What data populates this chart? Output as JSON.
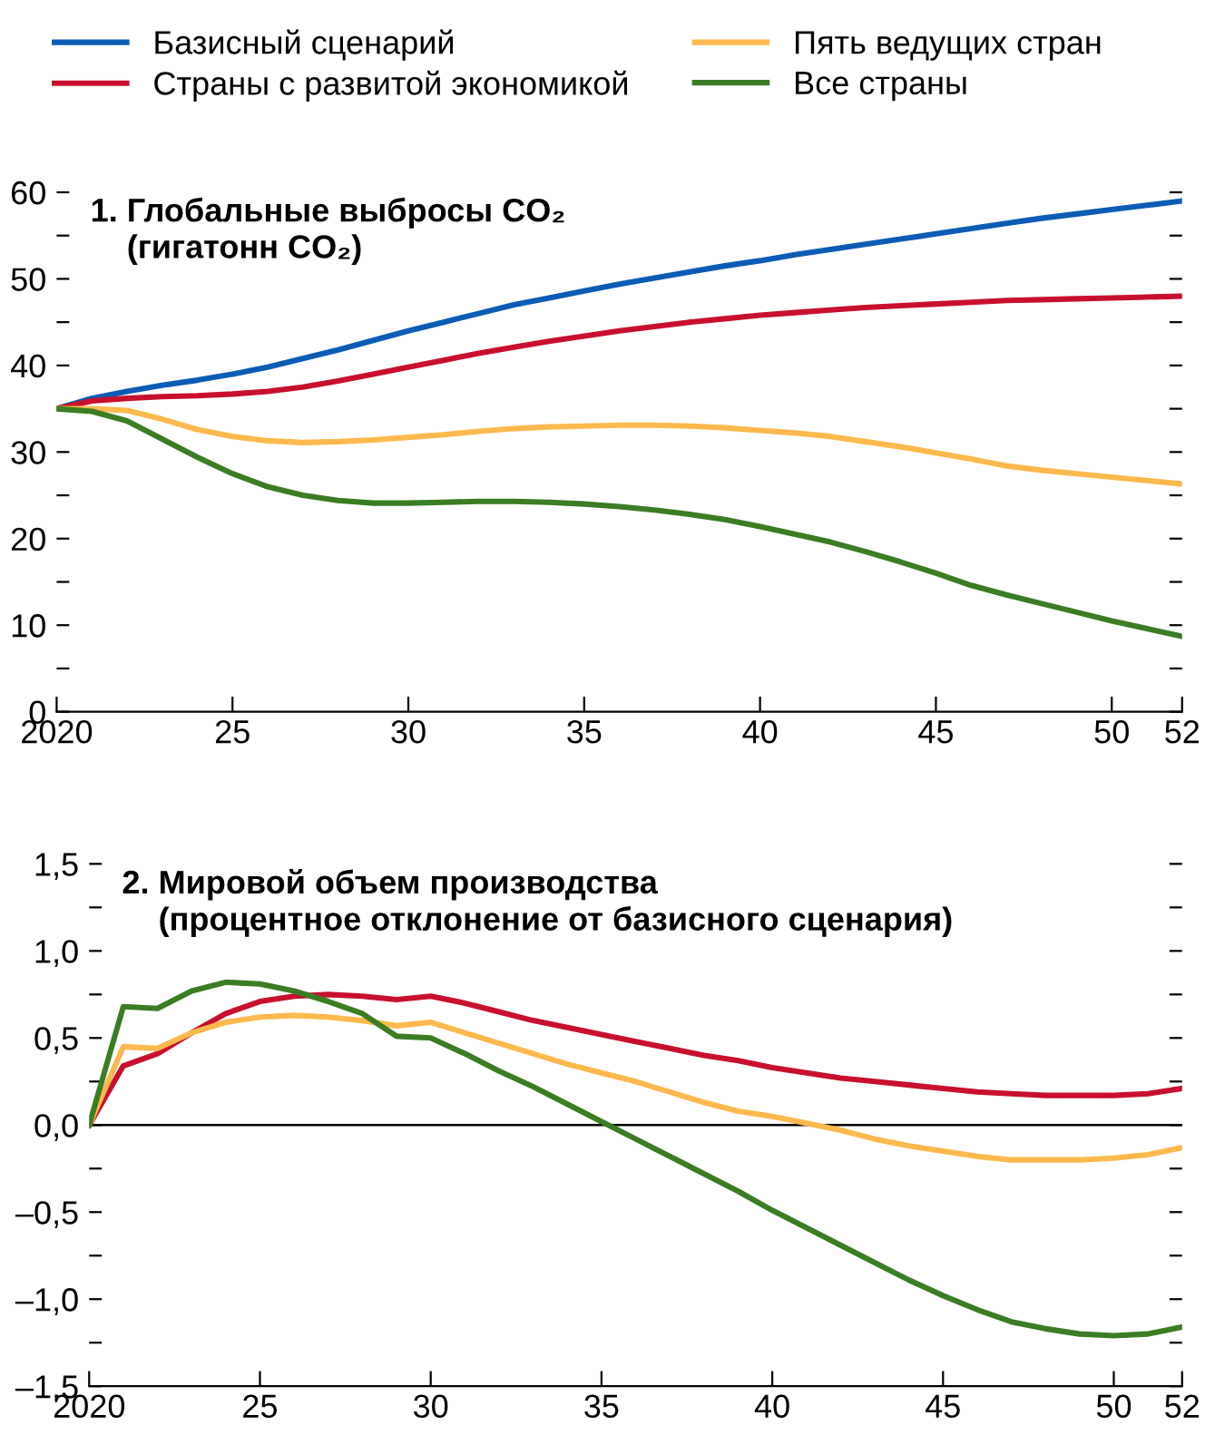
{
  "chart_data": [
    {
      "type": "line",
      "title": "1. Глобальные выбросы CO₂\n    (гигатонн CO₂)",
      "legend": "top",
      "x": [
        2020,
        2021,
        2022,
        2023,
        2024,
        2025,
        2026,
        2027,
        2028,
        2029,
        2030,
        2031,
        2032,
        2033,
        2034,
        2035,
        2036,
        2037,
        2038,
        2039,
        2040,
        2041,
        2042,
        2043,
        2044,
        2045,
        2046,
        2047,
        2048,
        2049,
        2050,
        2051,
        2052
      ],
      "series": [
        {
          "name": "Базисный сценарий",
          "color": "#0a5cb5",
          "values": [
            35,
            36.2,
            37,
            37.7,
            38.3,
            39,
            39.8,
            40.8,
            41.8,
            42.9,
            44,
            45,
            46,
            47,
            47.8,
            48.6,
            49.4,
            50.1,
            50.8,
            51.5,
            52.1,
            52.8,
            53.4,
            54,
            54.6,
            55.2,
            55.8,
            56.4,
            57,
            57.5,
            58,
            58.5,
            59
          ]
        },
        {
          "name": "Страны с развитой экономикой",
          "color": "#c8102e",
          "values": [
            35,
            35.9,
            36.2,
            36.4,
            36.5,
            36.7,
            37,
            37.5,
            38.2,
            39,
            39.8,
            40.6,
            41.4,
            42.1,
            42.8,
            43.4,
            44,
            44.5,
            45,
            45.4,
            45.8,
            46.1,
            46.4,
            46.7,
            46.9,
            47.1,
            47.3,
            47.5,
            47.6,
            47.7,
            47.8,
            47.9,
            48
          ]
        },
        {
          "name": "Пять ведущих стран",
          "color": "#fdb94d",
          "values": [
            35,
            35,
            34.8,
            33.8,
            32.6,
            31.8,
            31.3,
            31.1,
            31.2,
            31.4,
            31.7,
            32,
            32.4,
            32.7,
            32.9,
            33,
            33.1,
            33.1,
            33,
            32.8,
            32.5,
            32.2,
            31.8,
            31.2,
            30.6,
            29.9,
            29.2,
            28.4,
            27.9,
            27.5,
            27.1,
            26.7,
            26.3
          ]
        },
        {
          "name": "Все страны",
          "color": "#3a7d22",
          "values": [
            35,
            34.7,
            33.6,
            31.5,
            29.4,
            27.5,
            26,
            25,
            24.4,
            24.1,
            24.1,
            24.2,
            24.3,
            24.3,
            24.2,
            24,
            23.7,
            23.3,
            22.8,
            22.2,
            21.4,
            20.5,
            19.6,
            18.5,
            17.3,
            16,
            14.6,
            13.5,
            12.5,
            11.5,
            10.5,
            9.6,
            8.7
          ]
        }
      ],
      "xlim": [
        2020,
        2052
      ],
      "xticks": [
        {
          "value": 2020,
          "label": "2020"
        },
        {
          "value": 2025,
          "label": "25"
        },
        {
          "value": 2030,
          "label": "30"
        },
        {
          "value": 2035,
          "label": "35"
        },
        {
          "value": 2040,
          "label": "40"
        },
        {
          "value": 2045,
          "label": "45"
        },
        {
          "value": 2050,
          "label": "50"
        },
        {
          "value": 2052,
          "label": "52"
        }
      ],
      "ylim": [
        0,
        60
      ],
      "yticks": [
        0,
        {
          "value": 5,
          "label": null
        },
        10,
        {
          "value": 15,
          "label": null
        },
        20,
        {
          "value": 25,
          "label": null
        },
        30,
        {
          "value": 35,
          "label": null
        },
        40,
        {
          "value": 45,
          "label": null
        },
        50,
        {
          "value": 55,
          "label": null
        },
        60
      ]
    },
    {
      "type": "line",
      "title": "2. Мировой объем производства\n    (процентное отклонение от базисного сценария)",
      "x": [
        2020,
        2021,
        2022,
        2023,
        2024,
        2025,
        2026,
        2027,
        2028,
        2029,
        2030,
        2031,
        2032,
        2033,
        2034,
        2035,
        2036,
        2037,
        2038,
        2039,
        2040,
        2041,
        2042,
        2043,
        2044,
        2045,
        2046,
        2047,
        2048,
        2049,
        2050,
        2051,
        2052
      ],
      "series": [
        {
          "name": "Страны с развитой экономикой",
          "color": "#c8102e",
          "values": [
            0,
            0.34,
            0.41,
            0.53,
            0.64,
            0.71,
            0.74,
            0.75,
            0.74,
            0.72,
            0.74,
            0.7,
            0.65,
            0.6,
            0.56,
            0.52,
            0.48,
            0.44,
            0.4,
            0.37,
            0.33,
            0.3,
            0.27,
            0.25,
            0.23,
            0.21,
            0.19,
            0.18,
            0.17,
            0.17,
            0.17,
            0.18,
            0.21
          ]
        },
        {
          "name": "Пять ведущих стран",
          "color": "#fdb94d",
          "values": [
            0,
            0.45,
            0.44,
            0.53,
            0.59,
            0.62,
            0.63,
            0.62,
            0.6,
            0.57,
            0.59,
            0.53,
            0.47,
            0.41,
            0.35,
            0.3,
            0.25,
            0.19,
            0.13,
            0.08,
            0.05,
            0.01,
            -0.03,
            -0.08,
            -0.12,
            -0.15,
            -0.18,
            -0.2,
            -0.2,
            -0.2,
            -0.19,
            -0.17,
            -0.13
          ]
        },
        {
          "name": "Все страны",
          "color": "#3a7d22",
          "values": [
            0,
            0.68,
            0.67,
            0.77,
            0.82,
            0.81,
            0.77,
            0.71,
            0.64,
            0.51,
            0.5,
            0.41,
            0.31,
            0.22,
            0.12,
            0.02,
            -0.08,
            -0.18,
            -0.28,
            -0.38,
            -0.49,
            -0.59,
            -0.69,
            -0.79,
            -0.89,
            -0.98,
            -1.06,
            -1.13,
            -1.17,
            -1.2,
            -1.21,
            -1.2,
            -1.16
          ]
        }
      ],
      "xlim": [
        2020,
        2052
      ],
      "xticks": [
        {
          "value": 2020,
          "label": "2020"
        },
        {
          "value": 2025,
          "label": "25"
        },
        {
          "value": 2030,
          "label": "30"
        },
        {
          "value": 2035,
          "label": "35"
        },
        {
          "value": 2040,
          "label": "40"
        },
        {
          "value": 2045,
          "label": "45"
        },
        {
          "value": 2050,
          "label": "50"
        },
        {
          "value": 2052,
          "label": "52"
        }
      ],
      "ylim": [
        -1.5,
        1.5
      ],
      "yticks": [
        {
          "value": -1.5,
          "label": "–1,5"
        },
        {
          "value": -1.25,
          "label": null
        },
        {
          "value": -1,
          "label": "–1,0"
        },
        {
          "value": -0.75,
          "label": null
        },
        {
          "value": -0.5,
          "label": "–0,5"
        },
        {
          "value": -0.25,
          "label": null
        },
        {
          "value": 0,
          "label": "0,0"
        },
        {
          "value": 0.25,
          "label": null
        },
        {
          "value": 0.5,
          "label": "0,5"
        },
        {
          "value": 0.75,
          "label": null
        },
        {
          "value": 1,
          "label": "1,0"
        },
        {
          "value": 1.25,
          "label": null
        },
        {
          "value": 1.5,
          "label": "1,5"
        }
      ],
      "ref_lines": [
        {
          "axis": "y",
          "value": 0,
          "color": "#000000"
        }
      ]
    }
  ]
}
